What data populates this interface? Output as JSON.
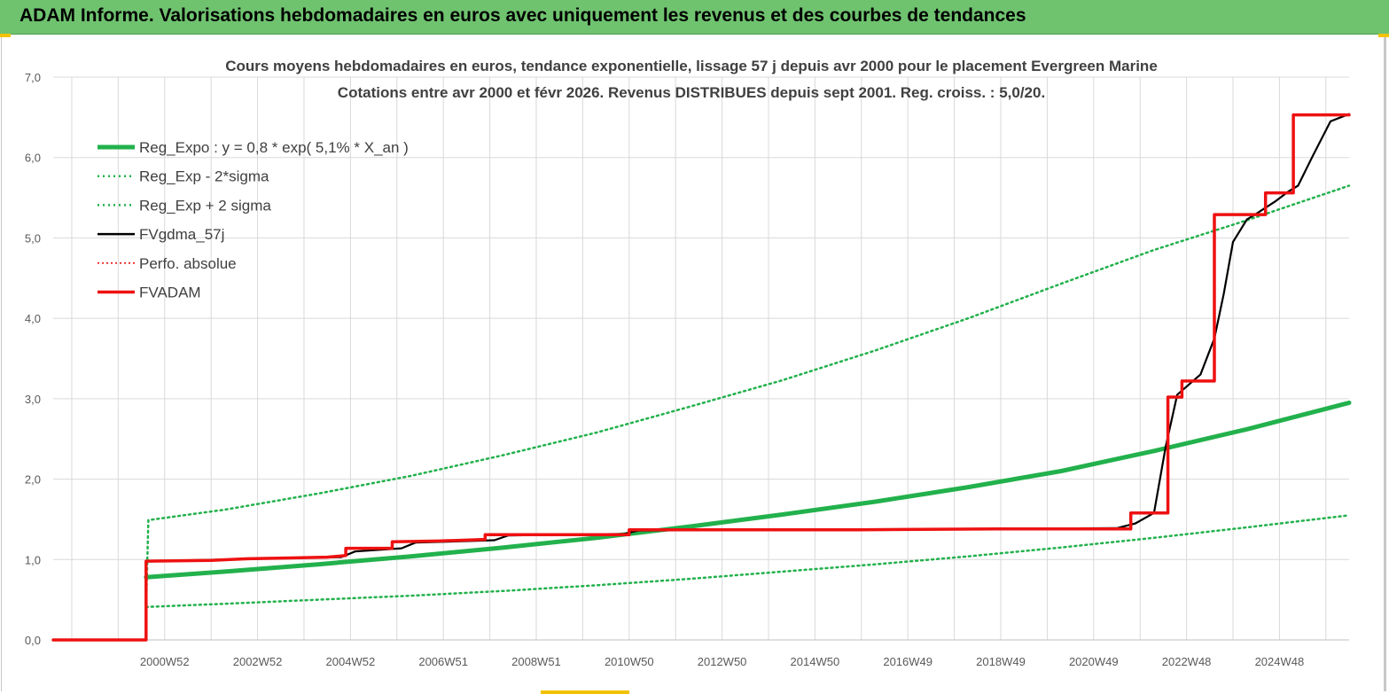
{
  "banner": {
    "title": "ADAM Informe. Valorisations hebdomadaires en euros avec uniquement les revenus et des courbes de tendances"
  },
  "colors": {
    "banner_bg": "#6fc36f",
    "trend": "#22b14c",
    "fvadam": "#ee1111",
    "fvgdma": "#000000",
    "grid": "#d9d9d9",
    "accent_marks": "#f2c200"
  },
  "chart_data": {
    "type": "line",
    "title": "Cours moyens hebdomadaires en euros, tendance exponentielle, lissage 57 j depuis avr 2000 pour le placement Evergreen  Marine",
    "subtitle": "Cotations entre avr 2000 et févr 2026. Revenus DISTRIBUES depuis sept 2001. Reg. croiss. : 5,0/20.",
    "xlabel": "",
    "ylabel": "",
    "ylim": [
      0,
      7
    ],
    "xlim": [
      1998.3,
      2026.2
    ],
    "y_ticks": [
      "0,0",
      "1,0",
      "2,0",
      "3,0",
      "4,0",
      "5,0",
      "6,0",
      "7,0"
    ],
    "x_ticks": [
      {
        "label": "2000W52",
        "x": 2001.0
      },
      {
        "label": "2002W52",
        "x": 2003.0
      },
      {
        "label": "2004W52",
        "x": 2005.0
      },
      {
        "label": "2006W51",
        "x": 2007.0
      },
      {
        "label": "2008W51",
        "x": 2009.0
      },
      {
        "label": "2010W50",
        "x": 2011.0
      },
      {
        "label": "2012W50",
        "x": 2013.0
      },
      {
        "label": "2014W50",
        "x": 2015.0
      },
      {
        "label": "2016W49",
        "x": 2017.0
      },
      {
        "label": "2018W49",
        "x": 2019.0
      },
      {
        "label": "2020W49",
        "x": 2021.0
      },
      {
        "label": "2022W48",
        "x": 2023.0
      },
      {
        "label": "2024W48",
        "x": 2025.0
      }
    ],
    "grid": true,
    "legend_position": "top-left",
    "series": [
      {
        "name": "Reg_Expo : y = 0,8 * exp( 5,1% *  X_an )",
        "style": "trend",
        "x": [
          2000.3,
          2002.0,
          2004.0,
          2006.0,
          2008.0,
          2010.0,
          2012.0,
          2014.0,
          2016.0,
          2018.0,
          2020.0,
          2022.0,
          2024.0,
          2026.2
        ],
        "y": [
          0.78,
          0.85,
          0.94,
          1.04,
          1.15,
          1.27,
          1.41,
          1.56,
          1.72,
          1.9,
          2.1,
          2.35,
          2.62,
          2.95
        ]
      },
      {
        "name": "Reg_Exp - 2*sigma",
        "style": "dotted",
        "x": [
          2000.3,
          2002.0,
          2004.0,
          2006.0,
          2008.0,
          2010.0,
          2012.0,
          2014.0,
          2016.0,
          2018.0,
          2020.0,
          2022.0,
          2024.0,
          2026.2
        ],
        "y": [
          0.41,
          0.45,
          0.5,
          0.55,
          0.61,
          0.68,
          0.76,
          0.85,
          0.94,
          1.04,
          1.15,
          1.27,
          1.4,
          1.55
        ]
      },
      {
        "name": "Reg_Exp + 2 sigma",
        "style": "dotted",
        "x": [
          2000.3,
          2000.35,
          2002.0,
          2004.0,
          2006.0,
          2008.0,
          2010.0,
          2012.0,
          2014.0,
          2016.0,
          2018.0,
          2020.0,
          2022.0,
          2024.0,
          2026.2
        ],
        "y": [
          0.41,
          1.49,
          1.62,
          1.82,
          2.04,
          2.3,
          2.58,
          2.9,
          3.23,
          3.6,
          4.0,
          4.43,
          4.85,
          5.22,
          5.65
        ]
      },
      {
        "name": "FVgdma_57j",
        "style": "smooth",
        "x": [
          1998.3,
          2000.3,
          2000.3,
          2004.5,
          2004.8,
          2005.8,
          2006.1,
          2007.8,
          2008.1,
          2010.6,
          2010.9,
          2021.2,
          2021.6,
          2022.0,
          2022.25,
          2022.5,
          2023.0,
          2023.3,
          2023.5,
          2023.7,
          2024.0,
          2024.2,
          2024.6,
          2024.9,
          2025.1,
          2025.4,
          2025.8,
          2026.2
        ],
        "y": [
          0.0,
          0.0,
          0.98,
          1.03,
          1.1,
          1.14,
          1.21,
          1.24,
          1.3,
          1.32,
          1.36,
          1.39,
          1.45,
          1.58,
          2.4,
          3.05,
          3.3,
          3.75,
          4.3,
          4.95,
          5.23,
          5.3,
          5.45,
          5.58,
          5.65,
          6.0,
          6.45,
          6.54
        ]
      },
      {
        "name": "Perfo. absolue",
        "style": "dotted",
        "x": [],
        "y": []
      },
      {
        "name": "FVADAM",
        "style": "step",
        "x": [
          1998.3,
          2000.3,
          2000.3,
          2001.7,
          2002.5,
          2003.4,
          2004.2,
          2004.6,
          2004.6,
          2005.6,
          2005.6,
          2006.6,
          2007.6,
          2007.6,
          2010.7,
          2010.7,
          2012.6,
          2015.6,
          2018.6,
          2021.5,
          2021.5,
          2022.3,
          2022.3,
          2022.6,
          2022.6,
          2023.3,
          2023.3,
          2024.4,
          2024.4,
          2025.0,
          2025.0,
          2025.6,
          2025.6,
          2026.2
        ],
        "y": [
          0.0,
          0.0,
          0.98,
          0.99,
          1.01,
          1.02,
          1.03,
          1.05,
          1.14,
          1.14,
          1.22,
          1.23,
          1.25,
          1.31,
          1.31,
          1.37,
          1.37,
          1.37,
          1.38,
          1.38,
          1.58,
          1.58,
          3.02,
          3.02,
          3.22,
          3.22,
          5.29,
          5.29,
          5.56,
          5.56,
          6.53,
          6.53,
          6.53,
          6.53
        ]
      }
    ]
  }
}
